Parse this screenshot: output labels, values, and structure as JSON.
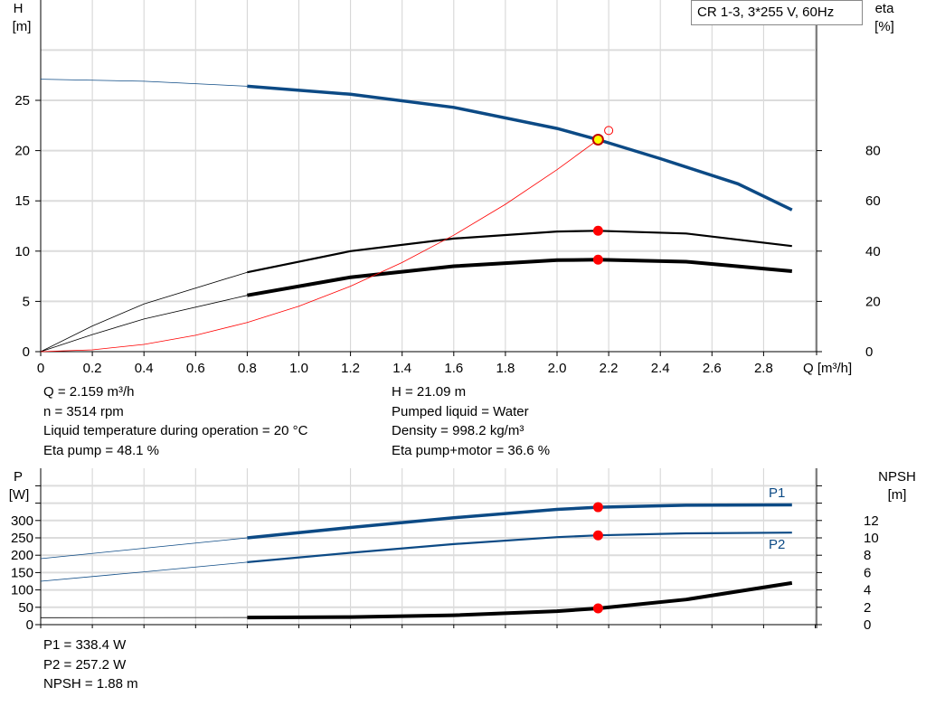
{
  "title_box": "CR 1-3, 3*255 V, 60Hz",
  "colors": {
    "head": "#0c4a85",
    "eta": "#000000",
    "system": "#ff0000",
    "point": "#ff0000",
    "grid": "#d3d3d3"
  },
  "info_top_left": [
    "Q = 2.159 m³/h",
    "n = 3514 rpm",
    "Liquid temperature during operation = 20 °C",
    "Eta pump = 48.1 %"
  ],
  "info_top_right": [
    "H = 21.09 m",
    "Pumped liquid = Water",
    "Density = 998.2 kg/m³",
    "Eta pump+motor = 36.6 %"
  ],
  "info_bottom": [
    "P1 = 338.4 W",
    "P2 = 257.2 W",
    "NPSH = 1.88 m"
  ],
  "chart_data": [
    {
      "type": "line",
      "ylabel": "H",
      "yunit": "[m]",
      "y2label": "eta",
      "y2unit": "[%]",
      "xlabel": "Q [m³/h]",
      "xlim": [
        0,
        3.0
      ],
      "ylim": [
        0,
        35
      ],
      "y2lim": [
        0,
        140
      ],
      "grid": true,
      "xticks": [
        "0",
        "0.2",
        "0.4",
        "0.6",
        "0.8",
        "1.0",
        "1.2",
        "1.4",
        "1.6",
        "1.8",
        "2.0",
        "2.2",
        "2.4",
        "2.6",
        "2.8"
      ],
      "yticks": [
        "0",
        "5",
        "10",
        "15",
        "20",
        "25"
      ],
      "y2ticks": [
        "0",
        "20",
        "40",
        "60",
        "80"
      ],
      "series": [
        {
          "key": "H",
          "axis": "H",
          "color": "#0c4a85",
          "x": [
            0,
            0.4,
            0.8,
            1.2,
            1.6,
            2.0,
            2.159,
            2.4,
            2.7,
            2.91
          ],
          "y": [
            27.1,
            26.9,
            26.4,
            25.6,
            24.3,
            22.2,
            21.09,
            19.2,
            16.7,
            14.1
          ]
        },
        {
          "key": "eta_pump",
          "axis": "eta",
          "color": "#000000",
          "x": [
            0,
            0.2,
            0.4,
            0.8,
            1.2,
            1.6,
            2.0,
            2.159,
            2.5,
            2.91
          ],
          "y": [
            0,
            10.2,
            19,
            31.6,
            40,
            45,
            47.8,
            48.1,
            47,
            42
          ]
        },
        {
          "key": "eta_pump_motor",
          "axis": "eta",
          "color": "#000000",
          "x": [
            0,
            0.2,
            0.4,
            0.8,
            1.2,
            1.6,
            2.0,
            2.159,
            2.5,
            2.91
          ],
          "y": [
            0,
            6.8,
            13,
            22.4,
            29.6,
            34,
            36.4,
            36.6,
            35.8,
            32
          ]
        },
        {
          "key": "system",
          "axis": "H",
          "color": "#ff0000",
          "x": [
            0,
            0.2,
            0.4,
            0.6,
            0.8,
            1.0,
            1.2,
            1.4,
            1.6,
            1.8,
            2.0,
            2.159
          ],
          "y": [
            0,
            0.18,
            0.72,
            1.63,
            2.9,
            4.52,
            6.51,
            8.87,
            11.58,
            14.66,
            18.1,
            21.09
          ]
        }
      ],
      "operating_point": {
        "Q": 2.159,
        "H": 21.09,
        "eta_pump": 48.1,
        "eta_pump_motor": 36.6
      },
      "requested_point": {
        "Q": 2.2,
        "H": 22.0
      }
    },
    {
      "type": "line",
      "ylabel": "P",
      "yunit": "[W]",
      "y2label": "NPSH",
      "y2unit": "[m]",
      "xlim": [
        0,
        3.0
      ],
      "ylim": [
        0,
        400
      ],
      "y2lim": [
        0,
        16
      ],
      "grid": true,
      "yticks": [
        "0",
        "50",
        "100",
        "150",
        "200",
        "250",
        "300"
      ],
      "y2ticks": [
        "0",
        "2",
        "4",
        "6",
        "8",
        "10",
        "12"
      ],
      "series": [
        {
          "key": "P1",
          "name": "P1",
          "axis": "P",
          "color": "#0c4a85",
          "x": [
            0,
            0.4,
            0.8,
            1.2,
            1.6,
            2.0,
            2.159,
            2.5,
            2.91
          ],
          "y": [
            190,
            220,
            250,
            280,
            308,
            332,
            338.4,
            344,
            345
          ]
        },
        {
          "key": "P2",
          "name": "P2",
          "axis": "P",
          "color": "#0c4a85",
          "x": [
            0,
            0.4,
            0.8,
            1.2,
            1.6,
            2.0,
            2.159,
            2.5,
            2.91
          ],
          "y": [
            125,
            152,
            180,
            207,
            232,
            252,
            257.2,
            263,
            265
          ]
        },
        {
          "key": "NPSH",
          "axis": "NPSH",
          "color": "#000000",
          "x": [
            0,
            0.8,
            1.2,
            1.6,
            2.0,
            2.159,
            2.5,
            2.91
          ],
          "y": [
            0.8,
            0.82,
            0.88,
            1.08,
            1.55,
            1.88,
            2.9,
            4.8
          ]
        }
      ],
      "operating_point": {
        "Q": 2.159,
        "P1": 338.4,
        "P2": 257.2,
        "NPSH": 1.88
      }
    }
  ]
}
